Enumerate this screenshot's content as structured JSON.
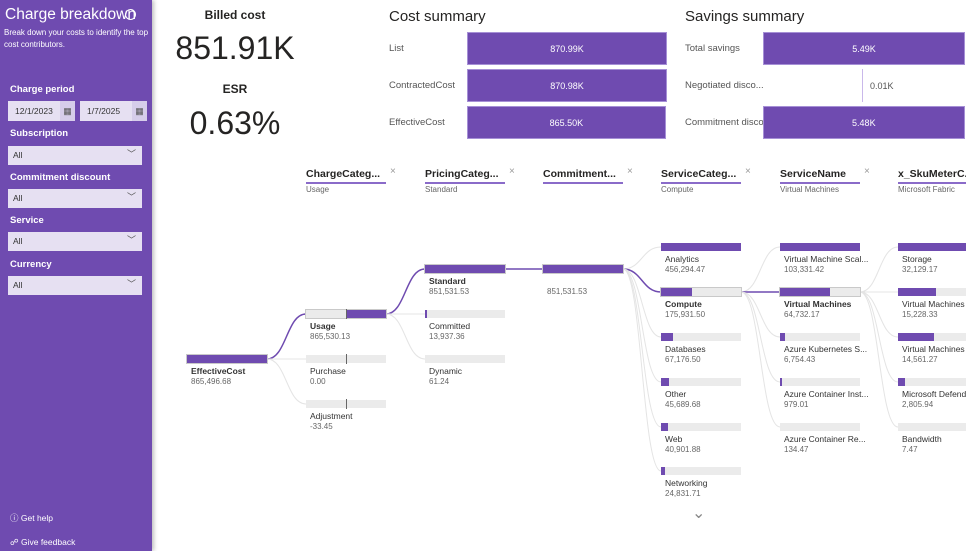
{
  "sidebar": {
    "title": "Charge breakdown",
    "info_icon": "ⓘ",
    "description": "Break down your costs to identify the top cost contributors.",
    "charge_period_label": "Charge period",
    "start_date": "12/1/2023",
    "end_date": "1/7/2025",
    "filters": [
      {
        "label": "Subscription",
        "value": "All"
      },
      {
        "label": "Commitment discount",
        "value": "All"
      },
      {
        "label": "Service",
        "value": "All"
      },
      {
        "label": "Currency",
        "value": "All"
      }
    ],
    "get_help": "Get help",
    "give_feedback": "Give feedback"
  },
  "kpis": {
    "billed_label": "Billed cost",
    "billed_value": "851.91K",
    "esr_label": "ESR",
    "esr_value": "0.63%"
  },
  "cost_summary": {
    "title": "Cost summary",
    "rows": [
      {
        "label": "List",
        "value": "870.99K",
        "amount": 870.99
      },
      {
        "label": "ContractedCost",
        "value": "870.98K",
        "amount": 870.98
      },
      {
        "label": "EffectiveCost",
        "value": "865.50K",
        "amount": 865.5
      }
    ]
  },
  "savings_summary": {
    "title": "Savings summary",
    "rows": [
      {
        "label": "Total savings",
        "value": "5.49K",
        "amount": 5.49
      },
      {
        "label": "Negotiated disco...",
        "value": "0.01K",
        "amount": 0.01
      },
      {
        "label": "Commitment disco...",
        "value": "5.48K",
        "amount": 5.48
      }
    ]
  },
  "accent": "#6f4bb0",
  "tree": {
    "columns": [
      {
        "header": "",
        "selected": ""
      },
      {
        "header": "ChargeCateg...",
        "selected": "Usage"
      },
      {
        "header": "PricingCateg...",
        "selected": "Standard"
      },
      {
        "header": "Commitment...",
        "selected": ""
      },
      {
        "header": "ServiceCateg...",
        "selected": "Compute"
      },
      {
        "header": "ServiceName",
        "selected": "Virtual Machines"
      },
      {
        "header": "x_SkuMeterC...",
        "selected": "Microsoft Fabric"
      }
    ],
    "close_icon": "×",
    "nodes": [
      [
        {
          "label": "EffectiveCost",
          "value": "865,496.68",
          "fill": 1,
          "sel": true
        }
      ],
      [
        {
          "label": "Usage",
          "value": "865,530.13",
          "fill": 1,
          "sel": true,
          "axis": 0.5
        },
        {
          "label": "Purchase",
          "value": "0.00",
          "fill": 0,
          "axis": 0.5
        },
        {
          "label": "Adjustment",
          "value": "-33.45",
          "fill": 0,
          "axis": 0.5
        }
      ],
      [
        {
          "label": "Standard",
          "value": "851,531.53",
          "fill": 1,
          "sel": true
        },
        {
          "label": "Committed",
          "value": "13,937.36",
          "fill": 0.02
        },
        {
          "label": "Dynamic",
          "value": "61.24",
          "fill": 0
        }
      ],
      [
        {
          "label": "",
          "value": "851,531.53",
          "fill": 1,
          "sel": true
        }
      ],
      [
        {
          "label": "Analytics",
          "value": "456,294.47",
          "fill": 1
        },
        {
          "label": "Compute",
          "value": "175,931.50",
          "fill": 0.39,
          "sel": true
        },
        {
          "label": "Databases",
          "value": "67,176.50",
          "fill": 0.15
        },
        {
          "label": "Other",
          "value": "45,689.68",
          "fill": 0.1
        },
        {
          "label": "Web",
          "value": "40,901.88",
          "fill": 0.09
        },
        {
          "label": "Networking",
          "value": "24,831.71",
          "fill": 0.055
        }
      ],
      [
        {
          "label": "Virtual Machine Scal...",
          "value": "103,331.42",
          "fill": 1
        },
        {
          "label": "Virtual Machines",
          "value": "64,732.17",
          "fill": 0.63,
          "sel": true
        },
        {
          "label": "Azure Kubernetes S...",
          "value": "6,754.43",
          "fill": 0.065
        },
        {
          "label": "Azure Container Inst...",
          "value": "979.01",
          "fill": 0.01
        },
        {
          "label": "Azure Container Re...",
          "value": "134.47",
          "fill": 0
        }
      ],
      [
        {
          "label": "Storage",
          "value": "32,129.17",
          "fill": 1
        },
        {
          "label": "Virtual Machines",
          "value": "15,228.33",
          "fill": 0.47
        },
        {
          "label": "Virtual Machines L...",
          "value": "14,561.27",
          "fill": 0.45
        },
        {
          "label": "Microsoft Defender...",
          "value": "2,805.94",
          "fill": 0.09
        },
        {
          "label": "Bandwidth",
          "value": "7.47",
          "fill": 0
        }
      ]
    ],
    "more_icon": "⌄"
  }
}
